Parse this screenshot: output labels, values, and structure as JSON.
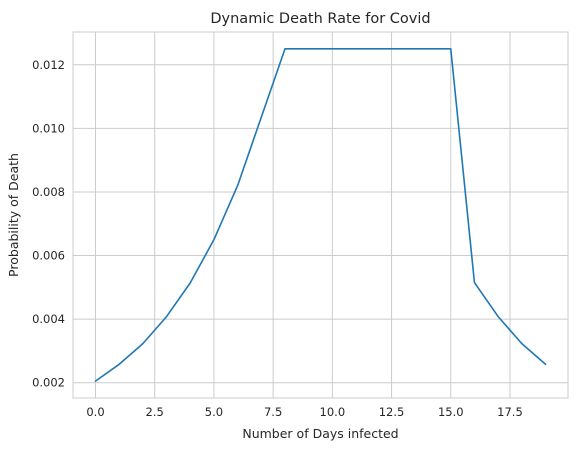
{
  "chart_data": {
    "type": "line",
    "title": "Dynamic Death Rate for Covid",
    "xlabel": "Number of Days infected",
    "ylabel": "Probability of Death",
    "xlim": [
      -0.95,
      19.95
    ],
    "ylim": [
      0.00152,
      0.01303
    ],
    "x_ticks": [
      0.0,
      2.5,
      5.0,
      7.5,
      10.0,
      12.5,
      15.0,
      17.5
    ],
    "x_tick_labels": [
      "0.0",
      "2.5",
      "5.0",
      "7.5",
      "10.0",
      "12.5",
      "15.0",
      "17.5"
    ],
    "y_ticks": [
      0.002,
      0.004,
      0.006,
      0.008,
      0.01,
      0.012
    ],
    "y_tick_labels": [
      "0.002",
      "0.004",
      "0.006",
      "0.008",
      "0.010",
      "0.012"
    ],
    "grid": true,
    "legend": null,
    "series": [
      {
        "color": "#1f77b4",
        "x": [
          0,
          1,
          2,
          3,
          4,
          5,
          6,
          7,
          8,
          9,
          10,
          11,
          12,
          13,
          14,
          15,
          16,
          17,
          18,
          19
        ],
        "y": [
          0.00205,
          0.00258,
          0.00323,
          0.00408,
          0.00514,
          0.0065,
          0.0082,
          0.01035,
          0.0125,
          0.0125,
          0.0125,
          0.0125,
          0.0125,
          0.0125,
          0.0125,
          0.0125,
          0.00515,
          0.00408,
          0.00323,
          0.00258
        ]
      }
    ]
  }
}
